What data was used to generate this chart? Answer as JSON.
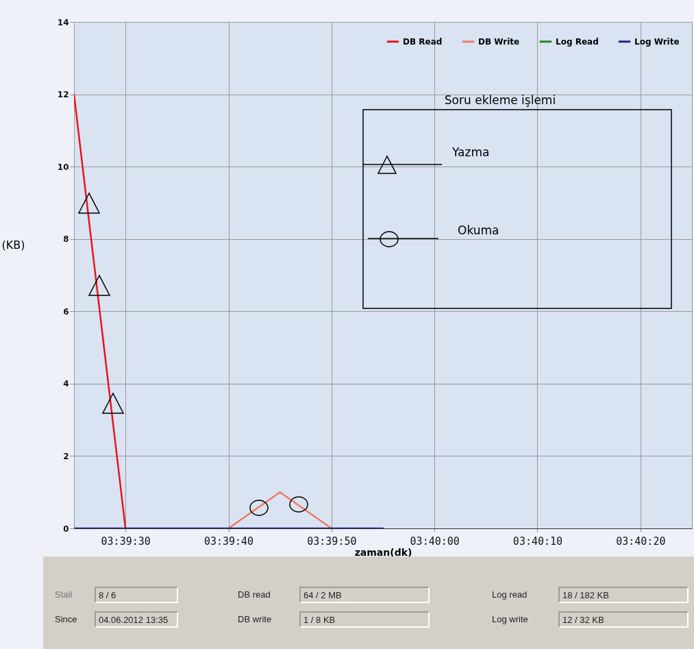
{
  "chart_data": {
    "type": "line",
    "xlabel": "zaman(dk)",
    "ylabel": "(KB)",
    "xlim": [
      3.656944,
      3.673611
    ],
    "xticks": [
      {
        "value": 3.658333,
        "label": "03:39:30"
      },
      {
        "value": 3.661111,
        "label": "03:39:40"
      },
      {
        "value": 3.663889,
        "label": "03:39:50"
      },
      {
        "value": 3.666667,
        "label": "03:40:00"
      },
      {
        "value": 3.669444,
        "label": "03:40:10"
      },
      {
        "value": 3.672222,
        "label": "03:40:20"
      }
    ],
    "ylim": [
      0,
      14
    ],
    "yticks": [
      0,
      2,
      4,
      6,
      8,
      10,
      12,
      14
    ],
    "x": [
      3.656944,
      3.658333,
      3.659722,
      3.661111,
      3.6625,
      3.663889,
      3.665278
    ],
    "series": [
      {
        "name": "DB Read",
        "color": "#e8141c",
        "values": [
          12,
          0,
          null,
          null,
          null,
          null,
          null
        ]
      },
      {
        "name": "DB Write",
        "color": "#f07a6a",
        "values": [
          null,
          null,
          null,
          0,
          1,
          0,
          null
        ]
      },
      {
        "name": "Log Read",
        "color": "#1a8a1a",
        "values": [
          null,
          null,
          null,
          null,
          null,
          null,
          null
        ]
      },
      {
        "name": "Log Write",
        "color": "#22229a",
        "values": [
          0,
          0,
          0,
          0,
          0,
          0,
          0
        ]
      }
    ],
    "grid": true,
    "legend": "top right",
    "annotations": [
      "Soru ekleme işlemi",
      "Yazma",
      "Okuma",
      "Stall",
      "8 / 6",
      "Since",
      "04.06.2012 13:35",
      "DB read",
      "64 / 2 MB",
      "DB write",
      "1 / 8 KB",
      "Log read",
      "18 / 182 KB",
      "Log write",
      "12 / 32 KB"
    ]
  }
}
